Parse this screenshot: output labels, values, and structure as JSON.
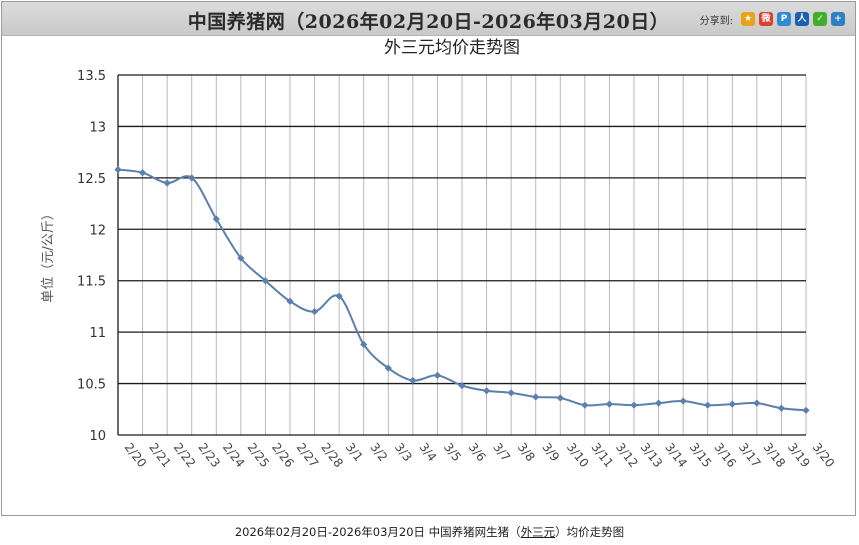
{
  "banner": {
    "title": "中国养猪网（2026年02月20日-2026年03月20日）",
    "share_label": "分享到:",
    "share_icons": [
      {
        "name": "qzone-icon",
        "glyph": "★",
        "color": "#e8a317"
      },
      {
        "name": "weibo-icon",
        "glyph": "微",
        "color": "#d9412e"
      },
      {
        "name": "tencent-weibo-icon",
        "glyph": "P",
        "color": "#2e8bd0"
      },
      {
        "name": "renren-icon",
        "glyph": "人",
        "color": "#1a5fb4"
      },
      {
        "name": "wechat-icon",
        "glyph": "✓",
        "color": "#3fae2a"
      },
      {
        "name": "more-icon",
        "glyph": "+",
        "color": "#2f7fc1"
      }
    ]
  },
  "caption": {
    "prefix": "2026年02月20日-2026年03月20日 中国养猪网生猪（",
    "link": "外三元",
    "suffix": "）均价走势图"
  },
  "chart_data": {
    "type": "line",
    "title": "外三元均价走势图",
    "xlabel": "",
    "ylabel": "单位（元/公斤）",
    "ylim": [
      10,
      13.5
    ],
    "yticks": [
      "10",
      "10.5",
      "11",
      "11.5",
      "12",
      "12.5",
      "13",
      "13.5"
    ],
    "grid": true,
    "categories": [
      "2/20",
      "2/21",
      "2/22",
      "2/23",
      "2/24",
      "2/25",
      "2/26",
      "2/27",
      "2/28",
      "3/1",
      "3/2",
      "3/3",
      "3/4",
      "3/5",
      "3/6",
      "3/7",
      "3/8",
      "3/9",
      "3/10",
      "3/11",
      "3/12",
      "3/13",
      "3/14",
      "3/15",
      "3/16",
      "3/17",
      "3/18",
      "3/19",
      "3/20"
    ],
    "series": [
      {
        "values": [
          12.58,
          12.55,
          12.45,
          12.5,
          12.1,
          11.72,
          11.5,
          11.3,
          11.2,
          11.35,
          10.88,
          10.65,
          10.53,
          10.58,
          10.48,
          10.43,
          10.41,
          10.37,
          10.36,
          10.29,
          10.3,
          10.29,
          10.31,
          10.33,
          10.29,
          10.3,
          10.31,
          10.26,
          10.24
        ],
        "color": "#5b7fae"
      }
    ]
  }
}
